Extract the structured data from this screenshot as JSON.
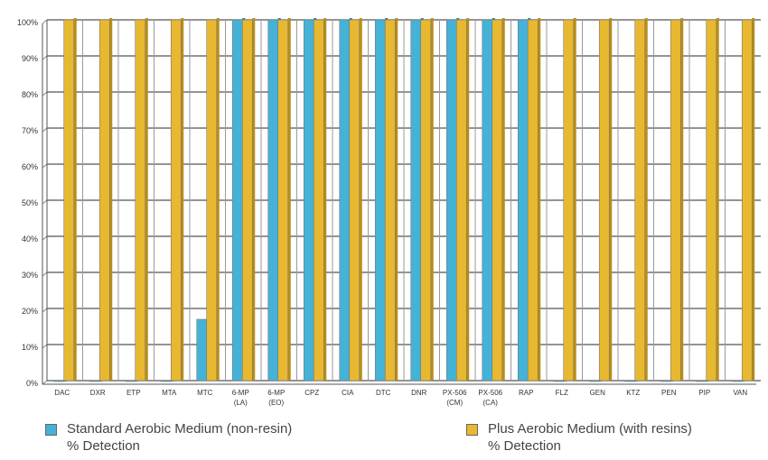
{
  "chart_data": {
    "type": "bar",
    "categories": [
      [
        "DAC"
      ],
      [
        "DXR"
      ],
      [
        "ETP"
      ],
      [
        "MTA"
      ],
      [
        "MTC"
      ],
      [
        "6-MP",
        "(LA)"
      ],
      [
        "6-MP",
        "(EO)"
      ],
      [
        "CPZ"
      ],
      [
        "CIA"
      ],
      [
        "DTC"
      ],
      [
        "DNR"
      ],
      [
        "PX-506",
        "(CM)"
      ],
      [
        "PX-506",
        "(CA)"
      ],
      [
        "RAP"
      ],
      [
        "FLZ"
      ],
      [
        "GEN"
      ],
      [
        "KTZ"
      ],
      [
        "PEN"
      ],
      [
        "PIP"
      ],
      [
        "VAN"
      ]
    ],
    "series": [
      {
        "name": "Standard Aerobic Medium (non-resin) % Detection",
        "color": "#45b2d8",
        "values": [
          0,
          0,
          0,
          0,
          17,
          100,
          100,
          100,
          100,
          100,
          100,
          100,
          100,
          100,
          0,
          0,
          0,
          0,
          0,
          0
        ]
      },
      {
        "name": "Plus Aerobic Medium (with resins) % Detection",
        "color": "#e8b830",
        "values": [
          100,
          100,
          100,
          100,
          100,
          100,
          100,
          100,
          100,
          100,
          100,
          100,
          100,
          100,
          100,
          100,
          100,
          100,
          100,
          100
        ]
      }
    ],
    "yticks": [
      "0%",
      "10%",
      "20%",
      "30%",
      "40%",
      "50%",
      "60%",
      "70%",
      "80%",
      "90%",
      "100%"
    ],
    "ylim": [
      0,
      100
    ],
    "grid": true,
    "legend_position": "bottom"
  },
  "legend": [
    {
      "line1": "Standard Aerobic Medium (non-resin)",
      "line2": "% Detection",
      "color": "#45b2d8"
    },
    {
      "line1": "Plus Aerobic Medium (with resins)",
      "line2": "% Detection",
      "color": "#e8b830"
    }
  ]
}
